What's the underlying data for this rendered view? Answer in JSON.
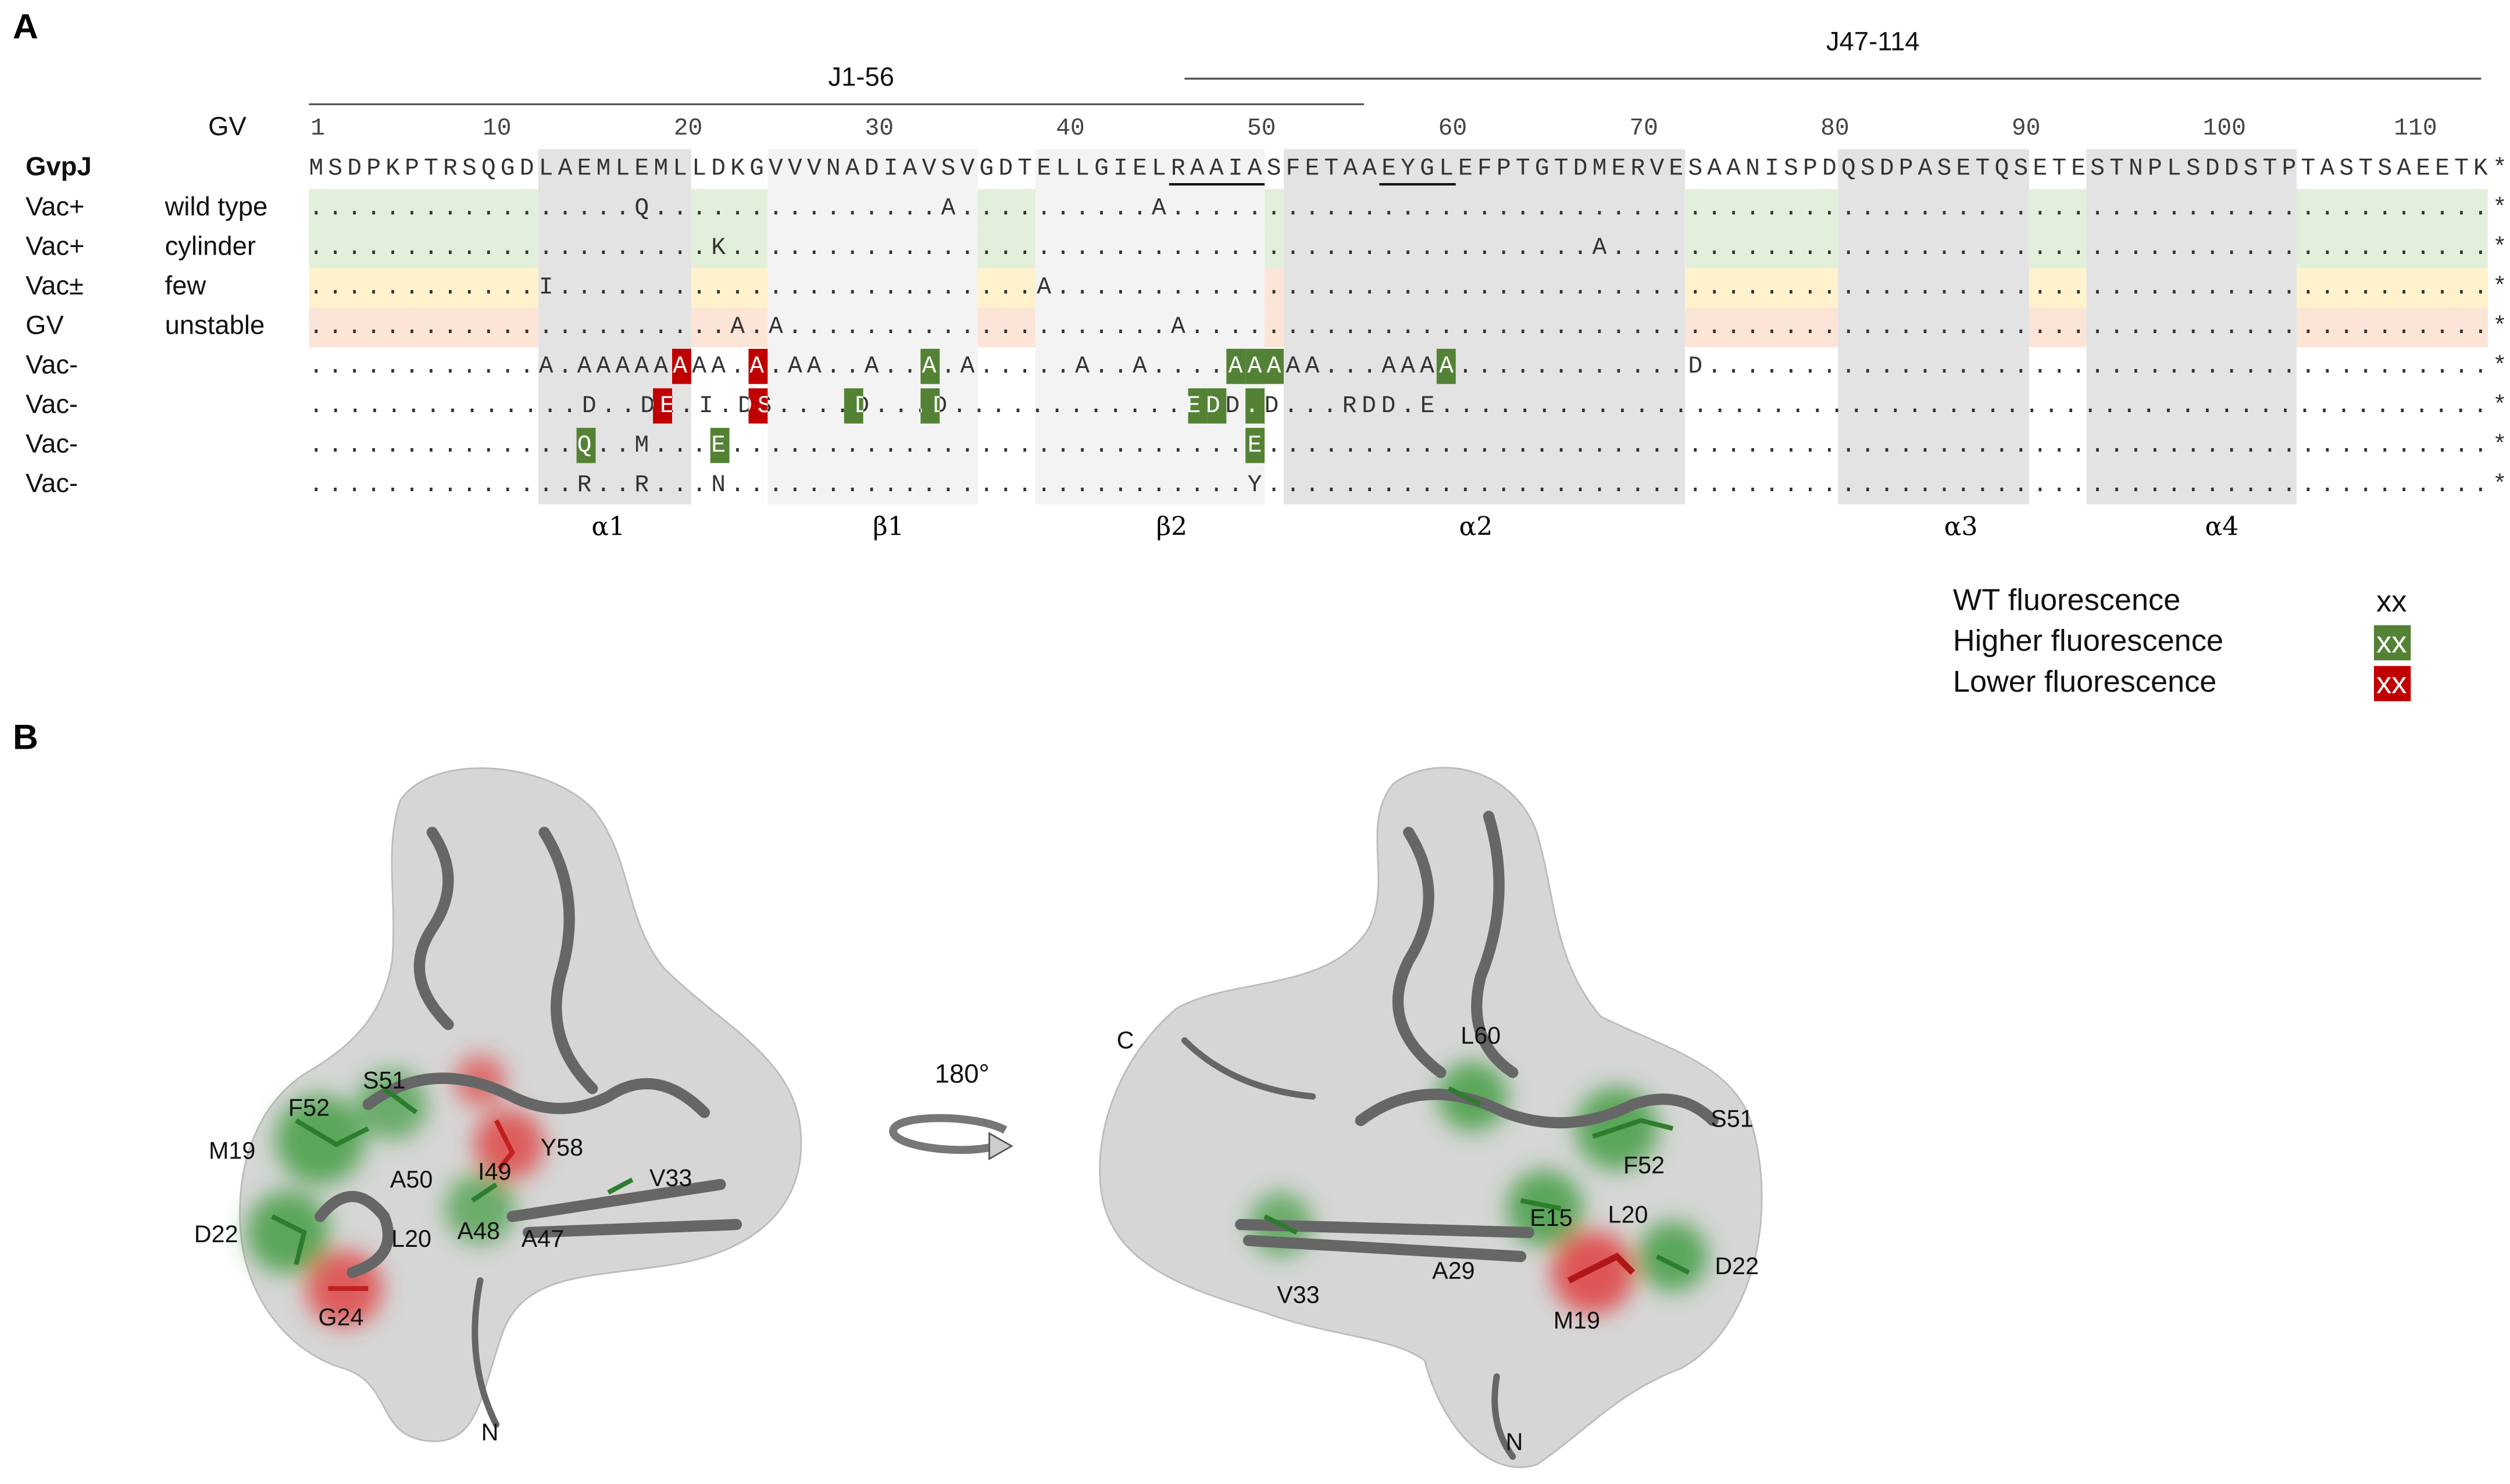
{
  "panel_a": {
    "label": "A",
    "constructs": [
      "J1-56",
      "J47-114"
    ],
    "ruler_label": "GV",
    "ruler": [
      1,
      10,
      20,
      30,
      40,
      50,
      60,
      70,
      80,
      90,
      100,
      110
    ],
    "sequence_name": "GvpJ",
    "sequence": "MSDPKPTRSQGDLAEMLEMLLDKGVVVNADIAVSVGDTELLGIELRAAIASFETAAEYGLEFPTGTDMERVESAANISPDQSDPASETQSETESTNPLSDDSTPTASTSAEETK*",
    "rows": [
      {
        "phenotype": "Vac+",
        "description": "wild type",
        "residues": ".................Q...............A..........A.....................................................................*",
        "higher": [],
        "lower": []
      },
      {
        "phenotype": "Vac+",
        "description": "cylinder",
        "residues": ".....................K.............................................A..............................................*",
        "higher": [],
        "lower": []
      },
      {
        "phenotype": "Vac±",
        "description": "few",
        "residues": "............I.........................A...........................................................................*",
        "higher": [],
        "lower": []
      },
      {
        "phenotype": "GV",
        "description": "unstable",
        "residues": "......................A.A....................A....................................................................*",
        "higher": [],
        "lower": []
      },
      {
        "phenotype": "Vac-",
        "residues": "............A.AAAAAAAA.A.AA..A..A.A.....A..A....AAAAA...AAAA............D.........................................*",
        "higher": [
          33,
          49,
          50,
          51,
          60
        ],
        "lower": [
          20,
          24
        ]
      },
      {
        "phenotype": "Vac-",
        "residues": "..............D..DE.I.DS....D...D............EDD.D...RDD.E......................................................*",
        "higher": [
          29,
          33,
          47,
          48,
          50
        ],
        "lower": [
          19,
          24
        ]
      },
      {
        "phenotype": "Vac-",
        "residues": "..............Q..M...E...........................E................................................................*",
        "higher": [
          15,
          22,
          50
        ],
        "lower": []
      },
      {
        "phenotype": "Vac-",
        "residues": "..............R..R...N...........................Y................................................................*",
        "higher": [],
        "lower": []
      }
    ],
    "elements": [
      "α1",
      "β1",
      "β2",
      "α2",
      "α3",
      "α4"
    ],
    "legend": [
      {
        "label": "WT fluorescence",
        "sample": "xx"
      },
      {
        "label": "Higher fluorescence",
        "sample": "xx",
        "color": "#548235"
      },
      {
        "label": "Lower fluorescence",
        "sample": "xx",
        "color": "#c00000"
      }
    ]
  },
  "panel_b": {
    "label": "B",
    "rotation": "180°",
    "left_labels": [
      "S51",
      "F52",
      "M19",
      "Y58",
      "A50",
      "I49",
      "V33",
      "D22",
      "L20",
      "A48",
      "A47",
      "G24",
      "N"
    ],
    "right_labels": [
      "C",
      "L60",
      "S51",
      "F52",
      "E15",
      "L20",
      "D22",
      "A29",
      "V33",
      "M19",
      "N"
    ]
  }
}
